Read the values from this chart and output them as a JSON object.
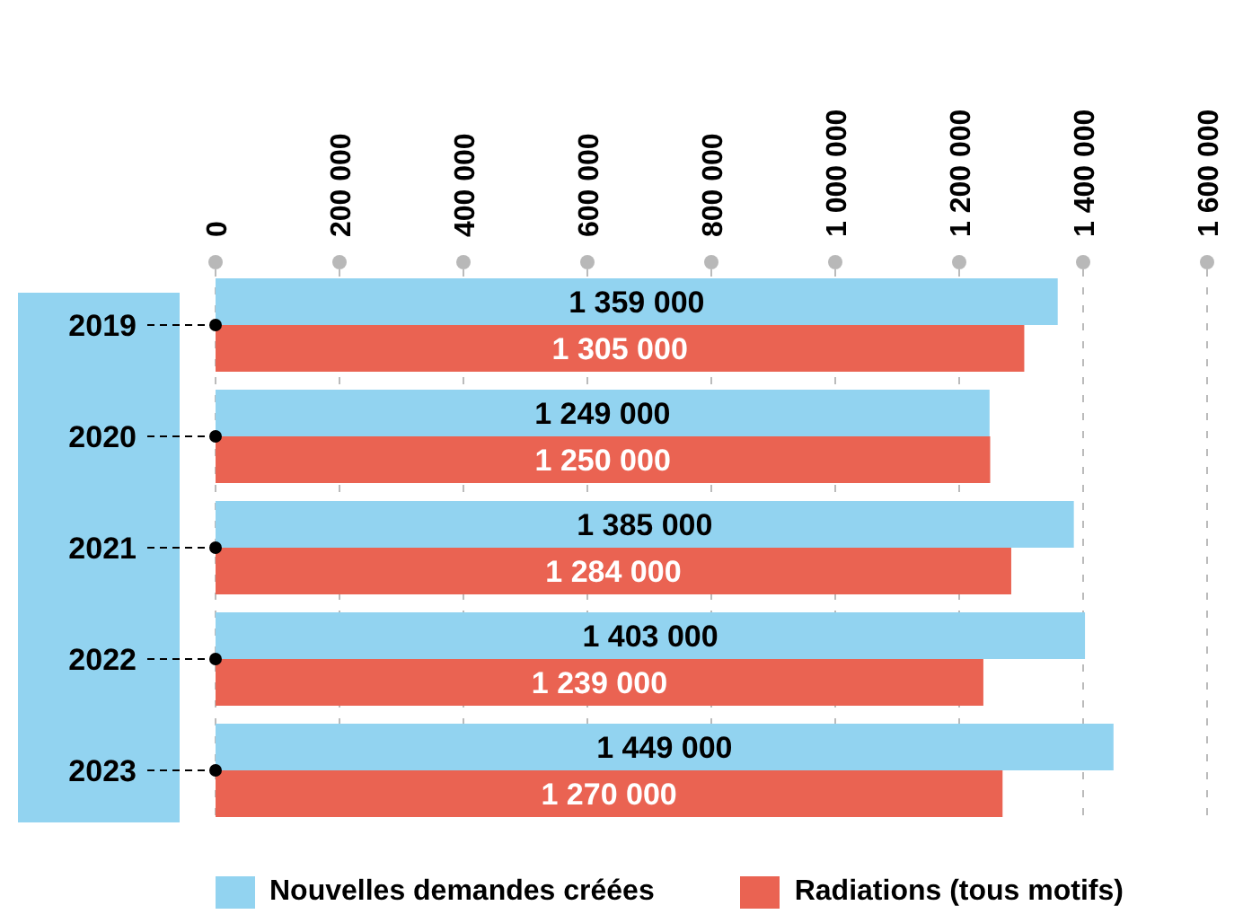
{
  "chart_data": {
    "type": "bar",
    "orientation": "horizontal",
    "categories": [
      "2019",
      "2020",
      "2021",
      "2022",
      "2023"
    ],
    "series": [
      {
        "name": "Nouvelles demandes créées",
        "color": "#92d3f0",
        "values": [
          1359000,
          1249000,
          1385000,
          1403000,
          1449000
        ],
        "value_labels": [
          "1 359 000",
          "1 249 000",
          "1 385 000",
          "1 403 000",
          "1 449 000"
        ]
      },
      {
        "name": "Radiations (tous motifs)",
        "color": "#ea6352",
        "values": [
          1305000,
          1250000,
          1284000,
          1239000,
          1270000
        ],
        "value_labels": [
          "1 305 000",
          "1 250 000",
          "1 284 000",
          "1 239 000",
          "1 270 000"
        ]
      }
    ],
    "xlim": [
      0,
      1600000
    ],
    "xticks": [
      0,
      {
        "value": 200000,
        "label": "200 000"
      },
      {
        "value": 400000,
        "label": "400 000"
      },
      {
        "value": 600000,
        "label": "600 000"
      },
      {
        "value": 800000,
        "label": "800 000"
      },
      {
        "value": 1000000,
        "label": "1 000 000"
      },
      {
        "value": 1200000,
        "label": "1 200 000"
      },
      {
        "value": 1400000,
        "label": "1 400 000"
      },
      {
        "value": 1600000,
        "label": "1 600 000"
      }
    ],
    "grid": "x",
    "legend": "bottom"
  }
}
